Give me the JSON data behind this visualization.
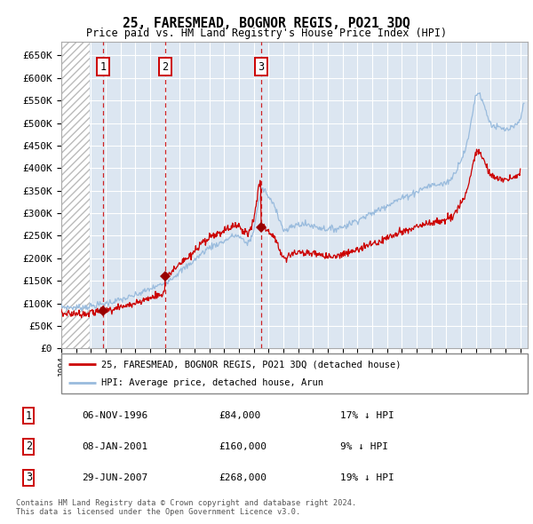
{
  "title": "25, FARESMEAD, BOGNOR REGIS, PO21 3DQ",
  "subtitle": "Price paid vs. HM Land Registry's House Price Index (HPI)",
  "legend_house": "25, FARESMEAD, BOGNOR REGIS, PO21 3DQ (detached house)",
  "legend_hpi": "HPI: Average price, detached house, Arun",
  "transactions": [
    {
      "label": "1",
      "date": "06-NOV-1996",
      "year": 1996.84,
      "price": 84000
    },
    {
      "label": "2",
      "date": "08-JAN-2001",
      "year": 2001.02,
      "price": 160000
    },
    {
      "label": "3",
      "date": "29-JUN-2007",
      "year": 2007.49,
      "price": 268000
    }
  ],
  "table_rows": [
    [
      "1",
      "06-NOV-1996",
      "£84,000",
      "17% ↓ HPI"
    ],
    [
      "2",
      "08-JAN-2001",
      "£160,000",
      "9% ↓ HPI"
    ],
    [
      "3",
      "29-JUN-2007",
      "£268,000",
      "19% ↓ HPI"
    ]
  ],
  "footnote1": "Contains HM Land Registry data © Crown copyright and database right 2024.",
  "footnote2": "This data is licensed under the Open Government Licence v3.0.",
  "ylim": [
    0,
    680000
  ],
  "yticks": [
    0,
    50000,
    100000,
    150000,
    200000,
    250000,
    300000,
    350000,
    400000,
    450000,
    500000,
    550000,
    600000,
    650000
  ],
  "xlim_start": 1994.0,
  "xlim_end": 2025.5,
  "hatch_end": 1995.9,
  "bg_color": "#dce6f1",
  "house_line_color": "#cc0000",
  "hpi_line_color": "#99bbdd",
  "transaction_marker_color": "#990000",
  "vline_color": "#cc0000",
  "box_edge_color": "#cc0000",
  "grid_color": "#ffffff",
  "hatch_face_color": "#ffffff",
  "hatch_pattern": "////",
  "legend_border_color": "#888888",
  "footnote_color": "#555555"
}
